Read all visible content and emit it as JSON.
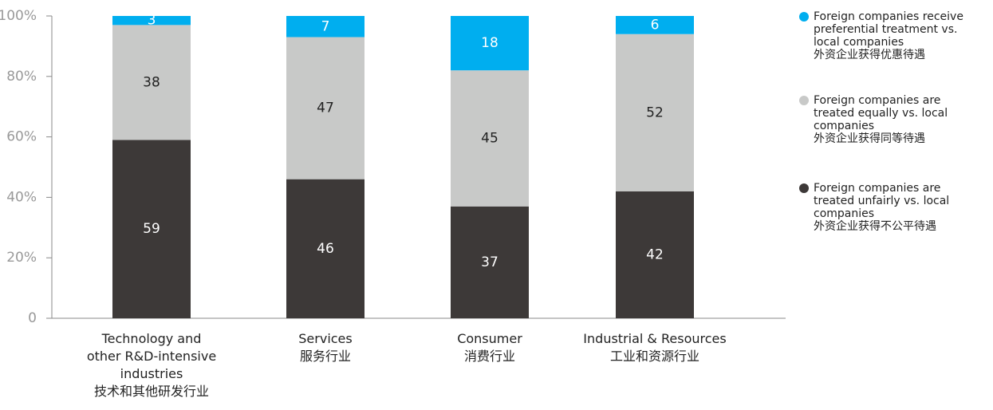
{
  "chart_data": {
    "type": "stacked_bar",
    "categories": [
      "Technology and\nother R&D-intensive\nindustries\n技术和其他研发行业",
      "Services\n服务行业",
      "Consumer\n消费行业",
      "Industrial & Resources\n工业和资源行业"
    ],
    "series": [
      {
        "name": "Foreign companies receive\npreferential treatment vs.\nlocal companies\n外资企业获得优惠待遇",
        "color": "#00aeef",
        "values": [
          3,
          7,
          18,
          6
        ]
      },
      {
        "name": "Foreign companies are\ntreated equally vs. local\ncompanies\n外资企业获得同等待遇",
        "color": "#c8c9c8",
        "values": [
          38,
          47,
          45,
          52
        ]
      },
      {
        "name": "Foreign companies are\ntreated unfairly vs. local\ncompanies\n外资企业获得不公平待遇",
        "color": "#3d3938",
        "values": [
          59,
          46,
          37,
          42
        ]
      }
    ],
    "ylim": [
      0,
      100
    ],
    "yticks": [
      0,
      {
        "value": 20,
        "label": "20%"
      },
      {
        "value": 40,
        "label": "40%"
      },
      {
        "value": 60,
        "label": "60%"
      },
      {
        "value": 80,
        "label": "80%"
      },
      {
        "value": 100,
        "label": "100%"
      }
    ],
    "legend": "right"
  }
}
